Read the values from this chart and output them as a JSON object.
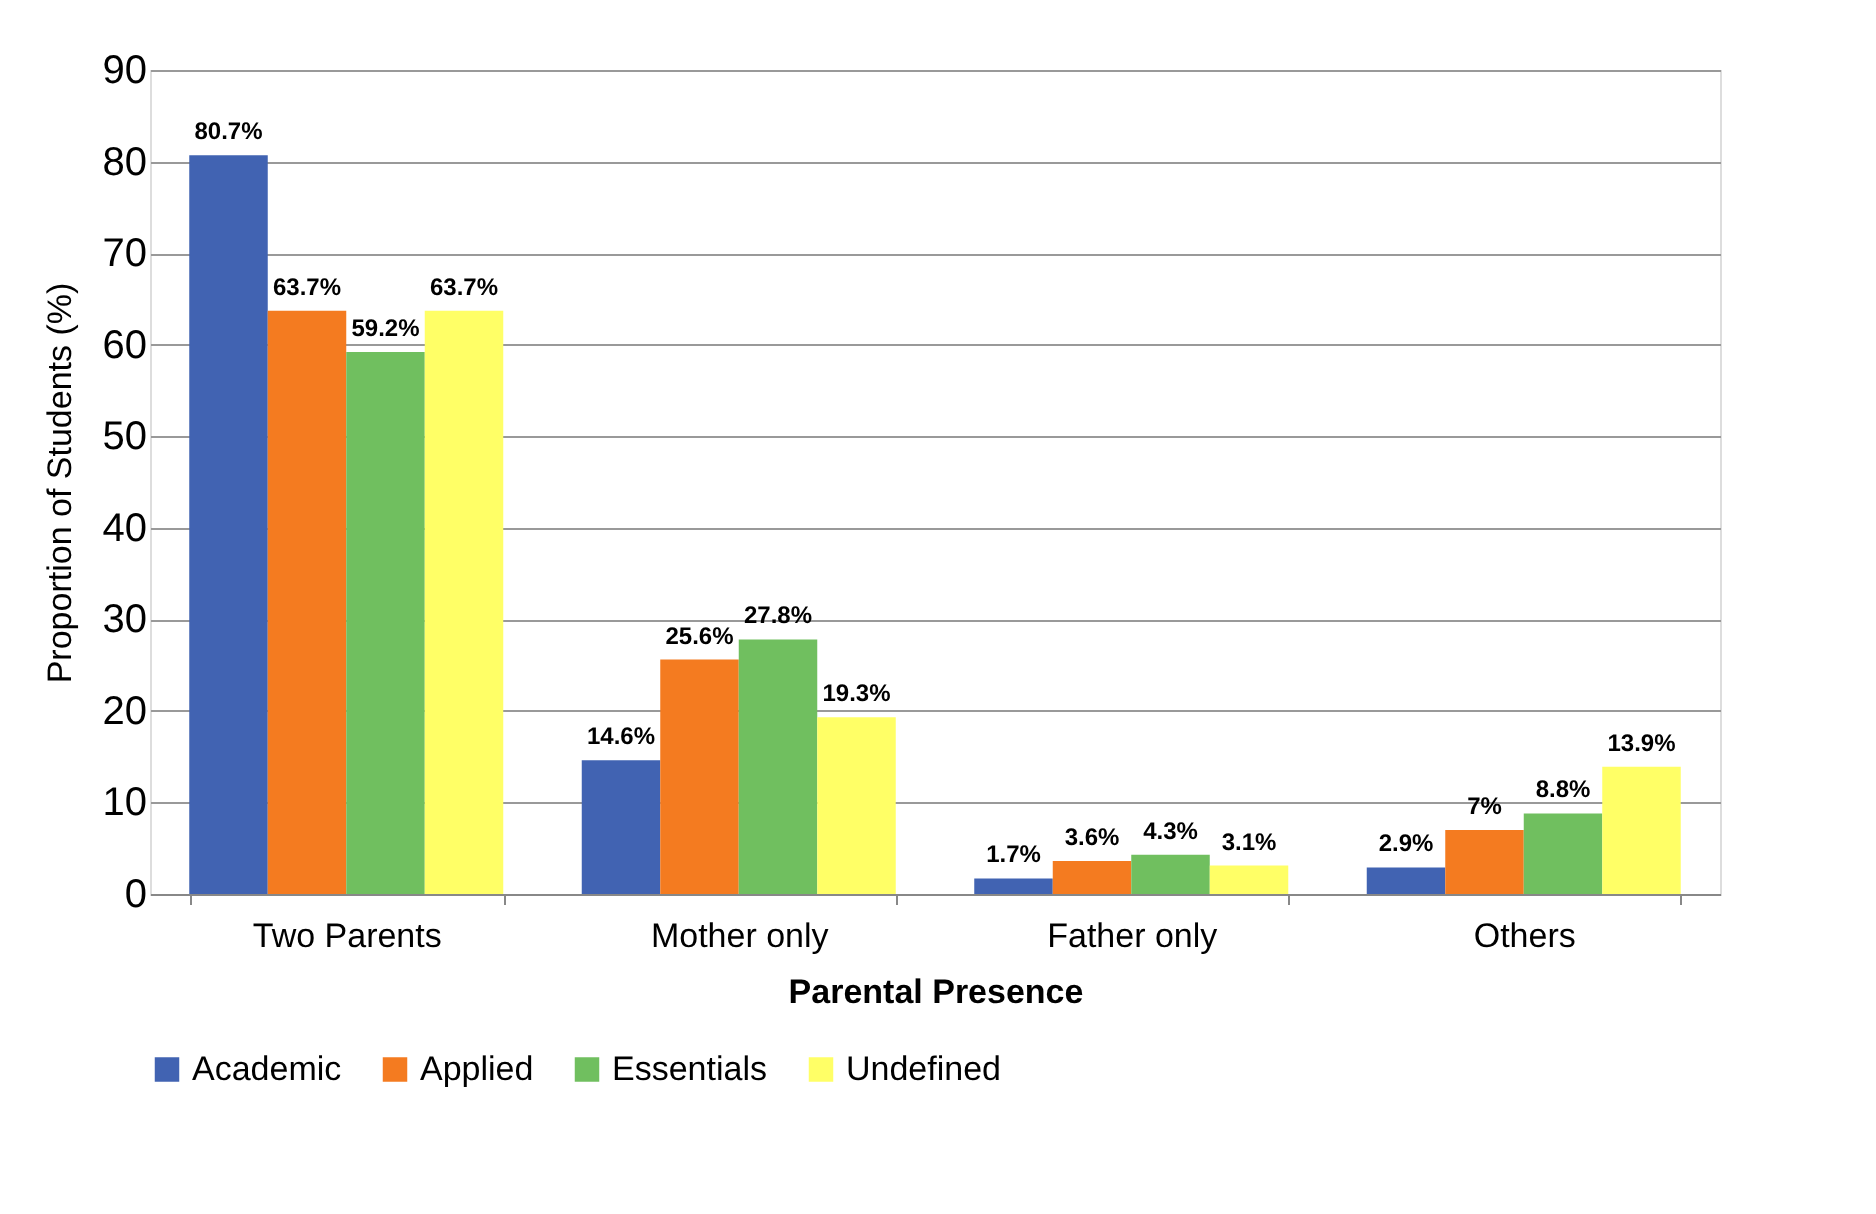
{
  "chart_data": {
    "type": "bar",
    "xlabel": "Parental Presence",
    "ylabel": "Proportion of Students (%)",
    "categories": [
      "Two Parents",
      "Mother only",
      "Father only",
      "Others"
    ],
    "series": [
      {
        "name": "Academic",
        "color": "#4163b2",
        "values": [
          80.7,
          14.6,
          1.7,
          2.9
        ],
        "value_labels": [
          "80.7%",
          "14.6%",
          "1.7%",
          "2.9%"
        ]
      },
      {
        "name": "Applied",
        "color": "#f47b20",
        "values": [
          63.7,
          25.6,
          3.6,
          7
        ],
        "value_labels": [
          "63.7%",
          "25.6%",
          "3.6%",
          "7%"
        ]
      },
      {
        "name": "Essentials",
        "color": "#70bf5f",
        "values": [
          59.2,
          27.8,
          4.3,
          8.8
        ],
        "value_labels": [
          "59.2%",
          "27.8%",
          "4.3%",
          "8.8%"
        ]
      },
      {
        "name": "Undefined",
        "color": "#ffff66",
        "values": [
          63.7,
          19.3,
          3.1,
          13.9
        ],
        "value_labels": [
          "63.7%",
          "19.3%",
          "3.1%",
          "13.9%"
        ]
      }
    ],
    "ylim": [
      0,
      90
    ],
    "yticks": [
      0,
      10,
      20,
      30,
      40,
      50,
      60,
      70,
      80,
      90
    ],
    "grid": "y",
    "legend": "bottom"
  }
}
